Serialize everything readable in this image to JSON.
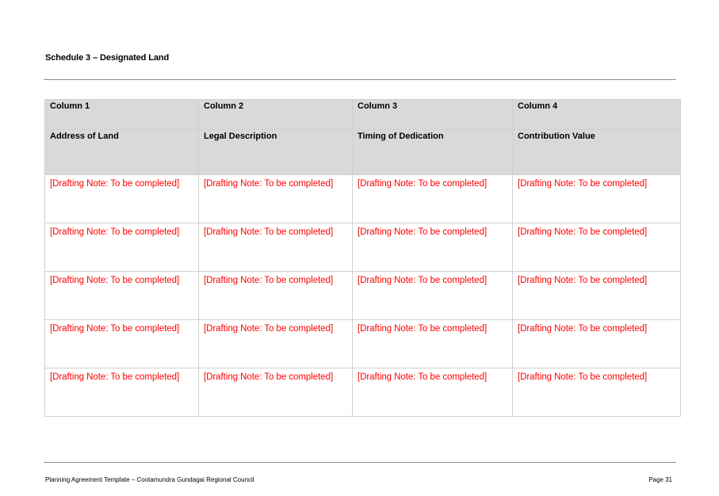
{
  "document": {
    "heading": "Schedule 3 – Designated Land"
  },
  "table": {
    "column_numbers": [
      "Column 1",
      "Column 2",
      "Column 3",
      "Column 4"
    ],
    "column_titles": [
      "Address of Land",
      "Legal Description",
      "Timing of Dedication",
      "Contribution Value"
    ],
    "rows": [
      [
        "[Drafting Note: To be completed]",
        "[Drafting Note: To be completed]",
        "[Drafting Note: To be completed]",
        "[Drafting Note: To be completed]"
      ],
      [
        "[Drafting Note: To be completed]",
        "[Drafting Note: To be completed]",
        "[Drafting Note: To be completed]",
        "[Drafting Note: To be completed]"
      ],
      [
        "[Drafting Note: To be completed]",
        "[Drafting Note: To be completed]",
        "[Drafting Note: To be completed]",
        "[Drafting Note: To be completed]"
      ],
      [
        "[Drafting Note: To be completed]",
        "[Drafting Note: To be completed]",
        "[Drafting Note: To be completed]",
        "[Drafting Note: To be completed]"
      ],
      [
        "[Drafting Note: To be completed]",
        "[Drafting Note: To be completed]",
        "[Drafting Note: To be completed]",
        "[Drafting Note: To be completed]"
      ]
    ]
  },
  "footer": {
    "left": "Planning Agreement Template – Cootamundra Gundagai Regional Council",
    "right": "Page 31"
  },
  "colors": {
    "header_fill": "#d9d9d9",
    "drafting_note": "#ff0000",
    "rule": "#8c8c8c"
  }
}
